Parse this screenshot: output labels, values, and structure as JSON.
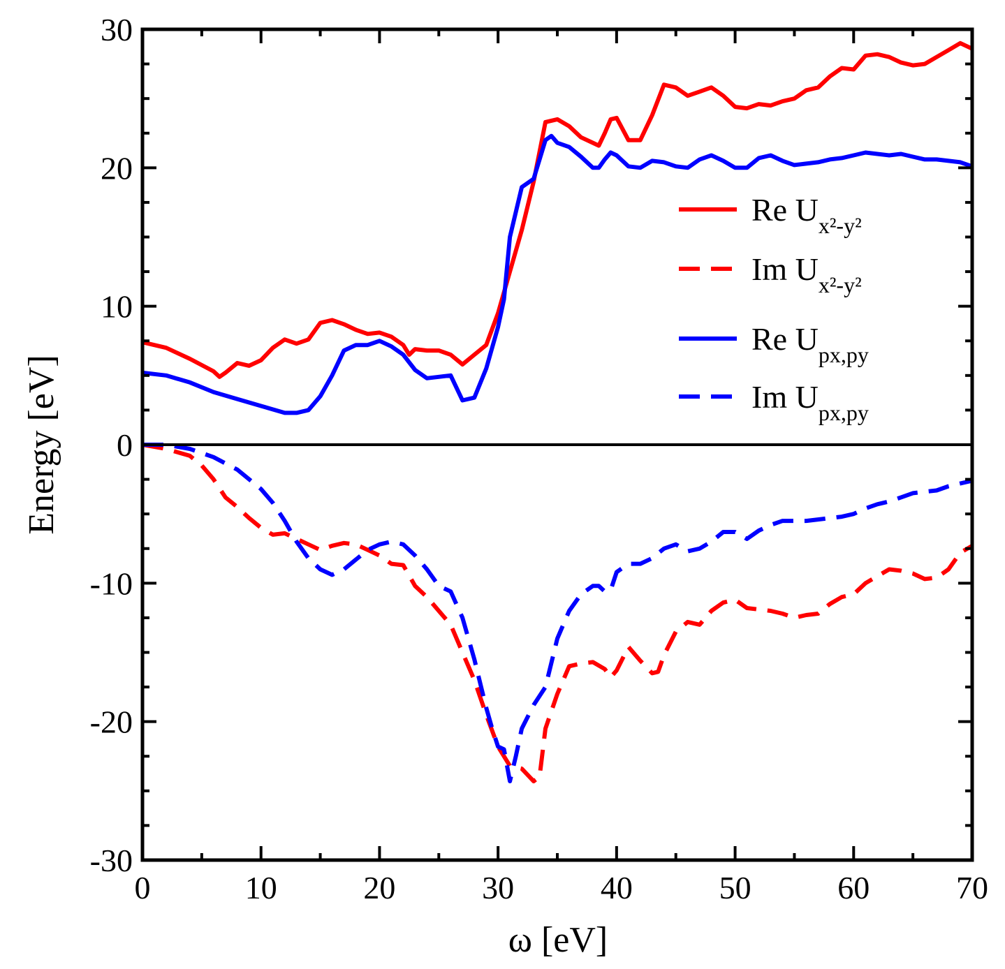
{
  "chart_data": {
    "type": "line",
    "xlabel": "ω [eV]",
    "ylabel": "Energy [eV]",
    "xlim": [
      0,
      70
    ],
    "ylim": [
      -30,
      30
    ],
    "x_ticks": [
      0,
      10,
      20,
      30,
      40,
      50,
      60,
      70
    ],
    "y_ticks": [
      -30,
      -20,
      -10,
      0,
      10,
      20,
      30
    ],
    "grid": false,
    "zero_line": true,
    "legend_position": "right",
    "series": [
      {
        "name": "Re U",
        "subscript": "x²-y²",
        "color": "#ff0000",
        "style": "solid",
        "x": [
          0,
          2,
          4,
          6,
          6.5,
          7,
          8,
          9,
          10,
          11,
          12,
          13,
          14,
          15,
          16,
          17,
          18,
          19,
          20,
          21,
          22,
          22.5,
          23,
          24,
          25,
          26,
          27,
          28,
          29,
          30,
          31,
          32,
          33,
          34,
          35,
          36,
          37,
          38,
          38.5,
          39,
          39.5,
          40,
          41,
          42,
          43,
          44,
          45,
          46,
          47,
          48,
          49,
          50,
          51,
          52,
          53,
          54,
          55,
          56,
          57,
          58,
          59,
          60,
          61,
          62,
          63,
          64,
          65,
          66,
          67,
          68,
          69,
          70
        ],
        "values": [
          7.4,
          7.0,
          6.2,
          5.3,
          4.9,
          5.2,
          5.9,
          5.7,
          6.1,
          7.0,
          7.6,
          7.3,
          7.6,
          8.8,
          9.0,
          8.7,
          8.3,
          8.0,
          8.1,
          7.8,
          7.2,
          6.5,
          6.9,
          6.8,
          6.8,
          6.5,
          5.8,
          6.5,
          7.2,
          9.5,
          12.5,
          15.5,
          19.0,
          23.3,
          23.5,
          23.0,
          22.2,
          21.8,
          21.6,
          22.5,
          23.5,
          23.6,
          22.0,
          22.0,
          23.8,
          26.0,
          25.8,
          25.2,
          25.5,
          25.8,
          25.2,
          24.4,
          24.3,
          24.6,
          24.5,
          24.8,
          25.0,
          25.6,
          25.8,
          26.6,
          27.2,
          27.1,
          28.1,
          28.2,
          28.0,
          27.6,
          27.4,
          27.5,
          28.0,
          28.5,
          29.0,
          28.6
        ]
      },
      {
        "name": "Im U",
        "subscript": "x²-y²",
        "color": "#ff0000",
        "style": "dashed",
        "x": [
          0,
          2,
          4,
          5,
          6,
          7,
          8,
          9,
          10,
          11,
          12,
          13,
          14,
          15,
          16,
          17,
          18,
          19,
          20,
          21,
          22,
          23,
          24,
          25,
          26,
          27,
          28,
          29,
          30,
          31,
          32,
          33,
          33.5,
          34,
          35,
          36,
          37,
          38,
          39,
          39.5,
          40,
          41,
          42,
          43,
          43.5,
          44,
          45,
          46,
          47,
          48,
          49,
          50,
          51,
          52,
          53,
          54,
          55,
          56,
          57,
          58,
          59,
          60,
          61,
          62,
          63,
          64,
          65,
          66,
          67,
          68,
          69,
          70
        ],
        "values": [
          0,
          -0.3,
          -0.8,
          -1.5,
          -2.5,
          -3.8,
          -4.5,
          -5.3,
          -6.0,
          -6.5,
          -6.4,
          -6.8,
          -7.2,
          -7.6,
          -7.3,
          -7.1,
          -7.2,
          -7.6,
          -8.0,
          -8.6,
          -8.7,
          -10.2,
          -11.0,
          -12.0,
          -13.0,
          -15.0,
          -17.0,
          -19.5,
          -21.8,
          -23.2,
          -23.4,
          -24.3,
          -24.0,
          -20.5,
          -18.0,
          -16.0,
          -15.8,
          -15.7,
          -16.2,
          -16.8,
          -16.3,
          -14.6,
          -15.6,
          -16.5,
          -16.4,
          -15.2,
          -13.5,
          -12.8,
          -13.0,
          -12.0,
          -11.4,
          -11.2,
          -11.8,
          -11.9,
          -12.0,
          -12.2,
          -12.5,
          -12.3,
          -12.2,
          -11.5,
          -11.0,
          -10.8,
          -10.0,
          -9.5,
          -9.0,
          -9.1,
          -9.3,
          -9.7,
          -9.6,
          -9.0,
          -7.8,
          -7.3
        ]
      },
      {
        "name": "Re U",
        "subscript": "px,py",
        "color": "#0000ff",
        "style": "solid",
        "x": [
          0,
          2,
          4,
          6,
          8,
          10,
          12,
          13,
          14,
          15,
          16,
          17,
          18,
          19,
          20,
          21,
          22,
          23,
          24,
          25,
          26,
          27,
          28,
          29,
          30,
          30.5,
          31,
          32,
          33,
          34,
          34.5,
          35,
          36,
          37,
          38,
          38.5,
          39,
          39.5,
          40,
          41,
          42,
          43,
          44,
          45,
          46,
          47,
          48,
          49,
          50,
          51,
          52,
          53,
          54,
          55,
          56,
          57,
          58,
          59,
          60,
          61,
          62,
          63,
          64,
          65,
          66,
          67,
          68,
          69,
          70
        ],
        "values": [
          5.2,
          5.0,
          4.5,
          3.8,
          3.3,
          2.8,
          2.3,
          2.3,
          2.5,
          3.5,
          5.0,
          6.8,
          7.2,
          7.2,
          7.5,
          7.1,
          6.5,
          5.4,
          4.8,
          4.9,
          5.0,
          3.2,
          3.4,
          5.5,
          8.5,
          10.5,
          15.0,
          18.6,
          19.2,
          22.0,
          22.3,
          21.8,
          21.5,
          20.8,
          20.0,
          20.0,
          20.6,
          21.1,
          20.9,
          20.1,
          20.0,
          20.5,
          20.4,
          20.1,
          20.0,
          20.6,
          20.9,
          20.5,
          20.0,
          20.0,
          20.7,
          20.9,
          20.5,
          20.2,
          20.3,
          20.4,
          20.6,
          20.7,
          20.9,
          21.1,
          21.0,
          20.9,
          21.0,
          20.8,
          20.6,
          20.6,
          20.5,
          20.4,
          20.1
        ]
      },
      {
        "name": "Im U",
        "subscript": "px,py",
        "color": "#0000ff",
        "style": "dashed",
        "x": [
          0,
          2,
          4,
          6,
          8,
          10,
          11,
          12,
          13,
          14,
          15,
          16,
          17,
          18,
          19,
          20,
          21,
          22,
          23,
          24,
          25,
          26,
          27,
          28,
          29,
          29.5,
          30,
          30.5,
          31,
          31.5,
          32,
          33,
          34,
          35,
          36,
          37,
          38,
          38.5,
          39,
          39.5,
          40,
          41,
          42,
          43,
          44,
          45,
          46,
          47,
          48,
          49,
          50,
          51,
          52,
          53,
          54,
          55,
          56,
          57,
          58,
          59,
          60,
          61,
          62,
          63,
          64,
          65,
          66,
          67,
          68,
          69,
          70
        ],
        "values": [
          0,
          0,
          -0.3,
          -0.9,
          -1.8,
          -3.2,
          -4.2,
          -5.5,
          -7.0,
          -8.2,
          -9.0,
          -9.4,
          -9.0,
          -8.3,
          -7.6,
          -7.2,
          -7.0,
          -7.2,
          -8.0,
          -9.0,
          -10.2,
          -10.6,
          -12.5,
          -15.5,
          -19.0,
          -20.5,
          -21.8,
          -22.0,
          -24.3,
          -22.5,
          -20.5,
          -18.8,
          -17.5,
          -14.0,
          -12.0,
          -10.8,
          -10.2,
          -10.2,
          -10.6,
          -10.5,
          -9.2,
          -8.6,
          -8.6,
          -8.2,
          -7.5,
          -7.2,
          -7.7,
          -7.5,
          -7.0,
          -6.3,
          -6.3,
          -6.8,
          -6.2,
          -5.8,
          -5.5,
          -5.5,
          -5.5,
          -5.4,
          -5.3,
          -5.2,
          -5.0,
          -4.6,
          -4.3,
          -4.1,
          -3.8,
          -3.5,
          -3.4,
          -3.3,
          -3.0,
          -2.8,
          -2.6
        ]
      }
    ]
  }
}
